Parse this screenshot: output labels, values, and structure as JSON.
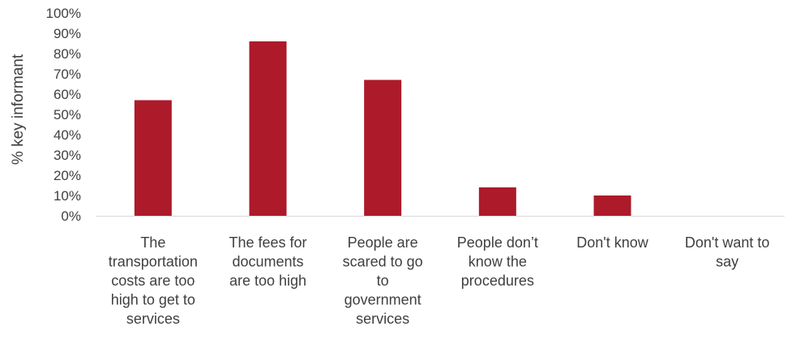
{
  "chart_data": {
    "type": "bar",
    "title": "",
    "xlabel": "",
    "ylabel": "% key informant",
    "ylim": [
      0,
      100
    ],
    "y_tick_step": 10,
    "y_tick_suffix": "%",
    "grid": false,
    "legend": "none",
    "bar_color": "#ad1a2a",
    "categories": [
      [
        "The",
        "transportation",
        "costs are too",
        "high to get to",
        "services"
      ],
      [
        "The fees for",
        "documents",
        "are too high"
      ],
      [
        "People are",
        "scared to go",
        "to",
        "government",
        "services"
      ],
      [
        "People don’t",
        "know the",
        "procedures"
      ],
      [
        "Don't know"
      ],
      [
        "Don't want to",
        "say"
      ]
    ],
    "values": [
      57,
      86,
      67,
      14,
      10,
      0
    ]
  }
}
